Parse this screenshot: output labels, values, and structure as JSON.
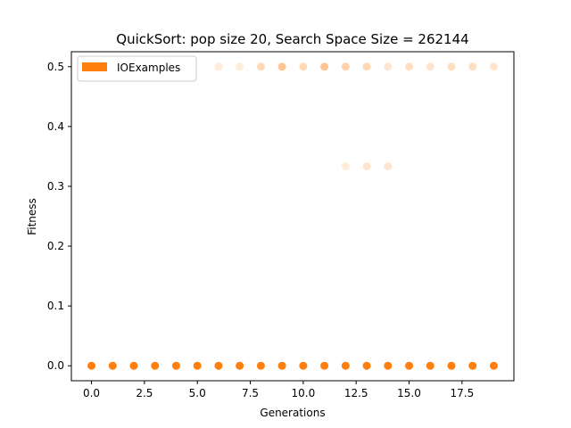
{
  "chart_data": {
    "type": "scatter",
    "title": "QuickSort: pop size 20, Search Space Size = 262144",
    "xlabel": "Generations",
    "ylabel": "Fitness",
    "xlim": [
      -0.95,
      19.95
    ],
    "ylim": [
      -0.025,
      0.525
    ],
    "xticks": [
      0.0,
      2.5,
      5.0,
      7.5,
      10.0,
      12.5,
      15.0,
      17.5
    ],
    "xtick_labels": [
      "0.0",
      "2.5",
      "5.0",
      "7.5",
      "10.0",
      "12.5",
      "15.0",
      "17.5"
    ],
    "yticks": [
      0.0,
      0.1,
      0.2,
      0.3,
      0.4,
      0.5
    ],
    "ytick_labels": [
      "0.0",
      "0.1",
      "0.2",
      "0.3",
      "0.4",
      "0.5"
    ],
    "grid": false,
    "legend": {
      "placement": "top-left",
      "entries": [
        {
          "label": "IOExamples",
          "color": "#ff7f0e"
        }
      ]
    },
    "series": [
      {
        "name": "IOExamples",
        "color": "#ff7f0e",
        "points": [
          {
            "x": 0,
            "y": 0.0,
            "alpha": 1.0
          },
          {
            "x": 1,
            "y": 0.0,
            "alpha": 1.0
          },
          {
            "x": 2,
            "y": 0.0,
            "alpha": 1.0
          },
          {
            "x": 3,
            "y": 0.0,
            "alpha": 1.0
          },
          {
            "x": 4,
            "y": 0.0,
            "alpha": 1.0
          },
          {
            "x": 5,
            "y": 0.0,
            "alpha": 1.0
          },
          {
            "x": 6,
            "y": 0.0,
            "alpha": 1.0
          },
          {
            "x": 7,
            "y": 0.0,
            "alpha": 1.0
          },
          {
            "x": 8,
            "y": 0.0,
            "alpha": 1.0
          },
          {
            "x": 9,
            "y": 0.0,
            "alpha": 1.0
          },
          {
            "x": 10,
            "y": 0.0,
            "alpha": 1.0
          },
          {
            "x": 11,
            "y": 0.0,
            "alpha": 1.0
          },
          {
            "x": 12,
            "y": 0.0,
            "alpha": 1.0
          },
          {
            "x": 13,
            "y": 0.0,
            "alpha": 1.0
          },
          {
            "x": 14,
            "y": 0.0,
            "alpha": 1.0
          },
          {
            "x": 15,
            "y": 0.0,
            "alpha": 1.0
          },
          {
            "x": 16,
            "y": 0.0,
            "alpha": 1.0
          },
          {
            "x": 17,
            "y": 0.0,
            "alpha": 1.0
          },
          {
            "x": 18,
            "y": 0.0,
            "alpha": 1.0
          },
          {
            "x": 19,
            "y": 0.0,
            "alpha": 1.0
          },
          {
            "x": 6,
            "y": 0.5,
            "alpha": 0.15
          },
          {
            "x": 7,
            "y": 0.5,
            "alpha": 0.15
          },
          {
            "x": 8,
            "y": 0.5,
            "alpha": 0.3
          },
          {
            "x": 9,
            "y": 0.5,
            "alpha": 0.45
          },
          {
            "x": 10,
            "y": 0.5,
            "alpha": 0.3
          },
          {
            "x": 11,
            "y": 0.5,
            "alpha": 0.45
          },
          {
            "x": 12,
            "y": 0.5,
            "alpha": 0.35
          },
          {
            "x": 13,
            "y": 0.5,
            "alpha": 0.3
          },
          {
            "x": 14,
            "y": 0.5,
            "alpha": 0.2
          },
          {
            "x": 15,
            "y": 0.5,
            "alpha": 0.25
          },
          {
            "x": 16,
            "y": 0.5,
            "alpha": 0.2
          },
          {
            "x": 17,
            "y": 0.5,
            "alpha": 0.25
          },
          {
            "x": 18,
            "y": 0.5,
            "alpha": 0.25
          },
          {
            "x": 19,
            "y": 0.5,
            "alpha": 0.2
          },
          {
            "x": 12,
            "y": 0.3333,
            "alpha": 0.15
          },
          {
            "x": 13,
            "y": 0.3333,
            "alpha": 0.2
          },
          {
            "x": 14,
            "y": 0.3333,
            "alpha": 0.2
          }
        ]
      }
    ]
  }
}
